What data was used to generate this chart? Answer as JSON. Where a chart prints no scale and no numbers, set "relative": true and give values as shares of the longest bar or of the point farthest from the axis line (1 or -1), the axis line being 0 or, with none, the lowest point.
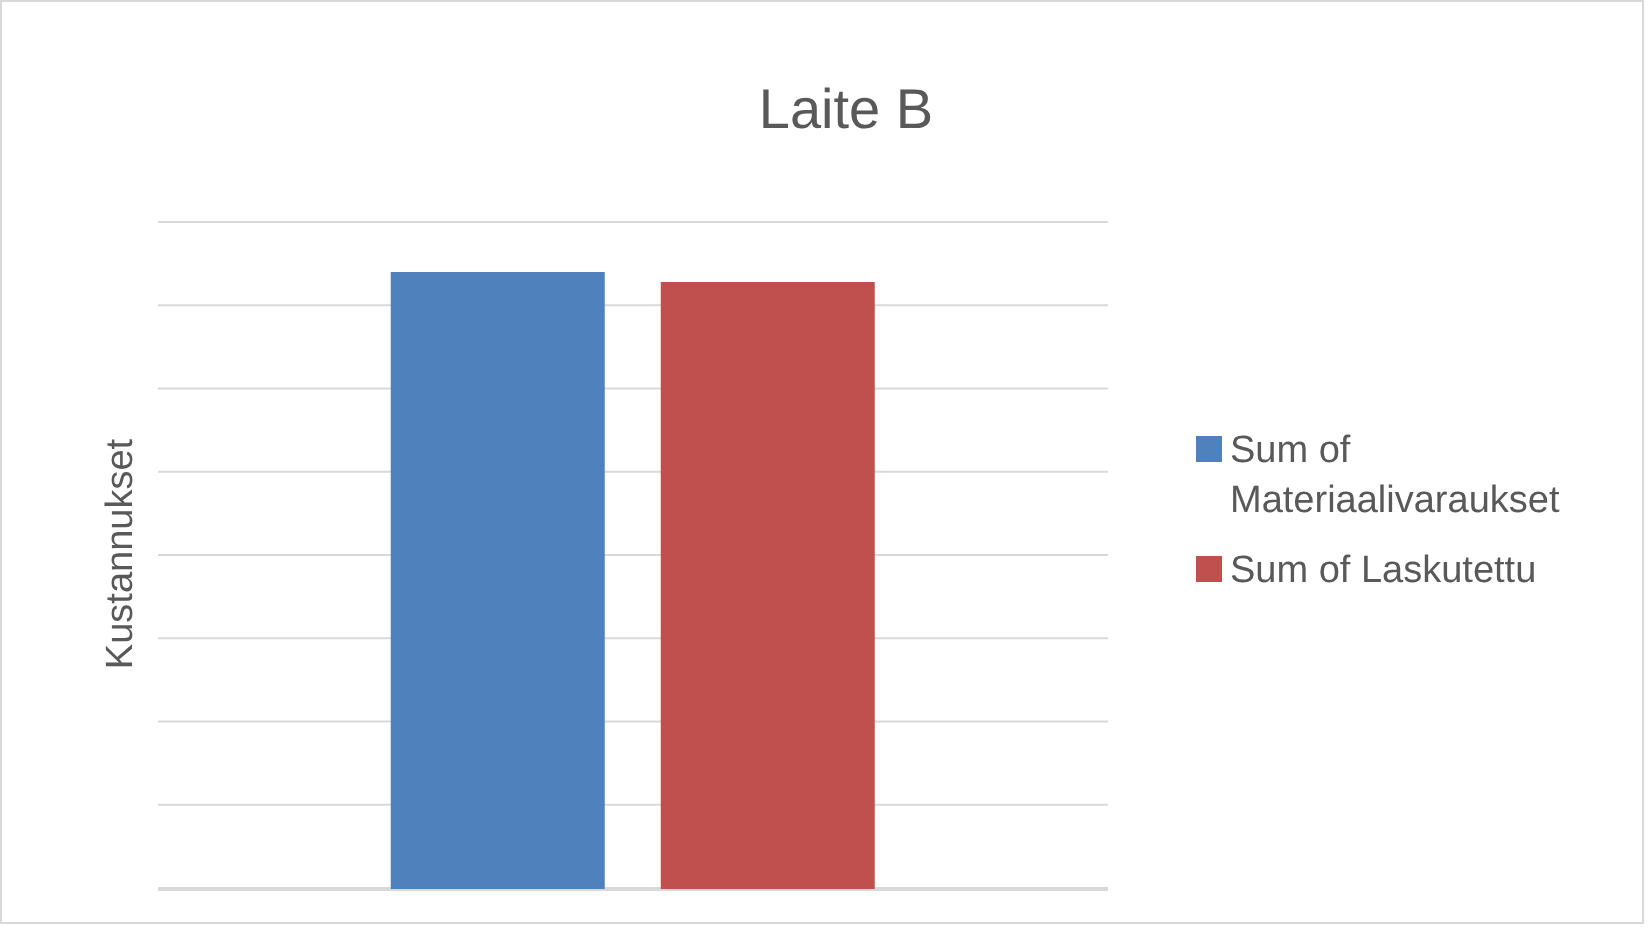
{
  "chart_data": {
    "type": "bar",
    "title": "Laite B",
    "ylabel": "Kustannukset",
    "categories": [
      null
    ],
    "relative": true,
    "grid": "y",
    "legend": "right",
    "series": [
      {
        "name": "Sum of Materiaalivaraukset",
        "color": "#4f81bd",
        "values": [
          1
        ]
      },
      {
        "name": "Sum of Laskutettu",
        "color": "#c0504d",
        "values": [
          0.984
        ]
      }
    ]
  }
}
